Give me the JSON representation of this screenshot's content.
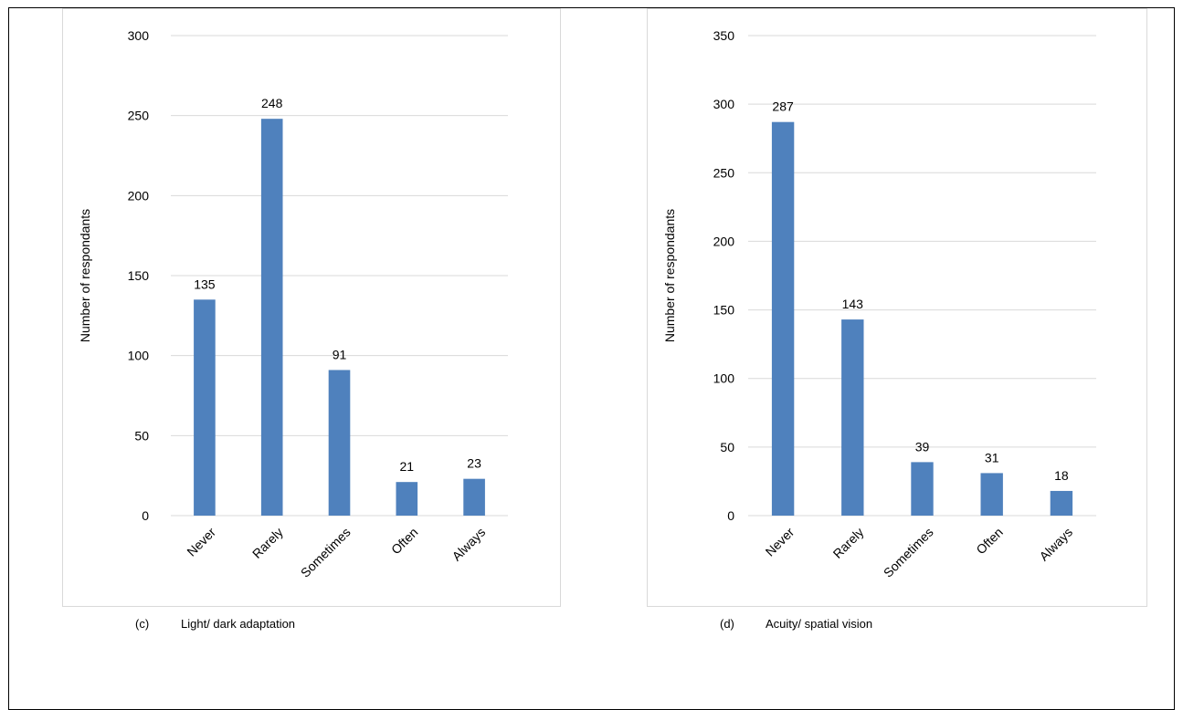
{
  "chart_data": [
    {
      "type": "bar",
      "caption_tag": "(c)",
      "caption_text": "Light/ dark adaptation",
      "categories": [
        "Never",
        "Rarely",
        "Sometimes",
        "Often",
        "Always"
      ],
      "values": [
        135,
        248,
        91,
        21,
        23
      ],
      "ylabel": "Number of respondants",
      "ylim": [
        0,
        300
      ],
      "yticks": [
        0,
        50,
        100,
        150,
        200,
        250,
        300
      ],
      "grid": true,
      "bar_color": "#4f81bd"
    },
    {
      "type": "bar",
      "caption_tag": "(d)",
      "caption_text": "Acuity/ spatial vision",
      "categories": [
        "Never",
        "Rarely",
        "Sometimes",
        "Often",
        "Always"
      ],
      "values": [
        287,
        143,
        39,
        31,
        18
      ],
      "ylabel": "Number of respondants",
      "ylim": [
        0,
        350
      ],
      "yticks": [
        0,
        50,
        100,
        150,
        200,
        250,
        300,
        350
      ],
      "grid": true,
      "bar_color": "#4f81bd"
    }
  ]
}
